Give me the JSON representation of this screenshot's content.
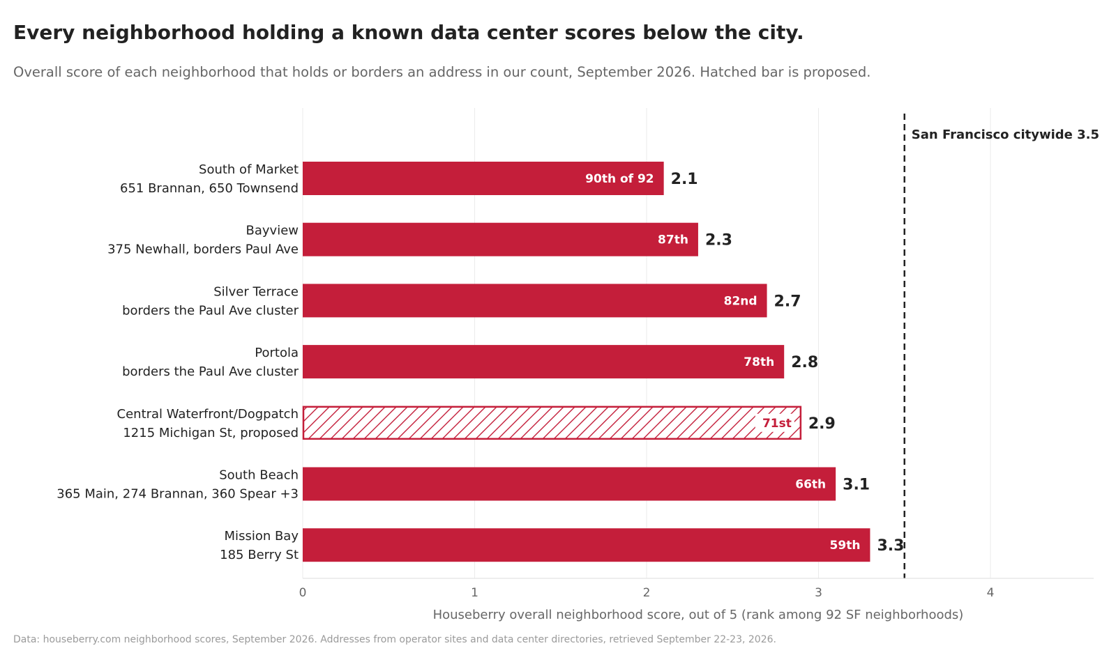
{
  "chart_data": {
    "type": "bar",
    "orientation": "horizontal",
    "title": "Every neighborhood holding a known data center scores below the city.",
    "subtitle": "Overall score of each neighborhood that holds or borders an address in our count, September 2026. Hatched bar is proposed.",
    "xlabel": "Houseberry overall neighborhood score, out of 5 (rank among 92 SF neighborhoods)",
    "source": "Data: houseberry.com neighborhood scores, September 2026. Addresses from operator sites and data center directories, retrieved September 22-23, 2026.",
    "xlim": [
      0,
      4.6
    ],
    "xticks": [
      0,
      1,
      2,
      3,
      4
    ],
    "grid": "vertical",
    "bar_color": "#c41e3a",
    "reference_line": {
      "value": 3.5,
      "label": "San Francisco citywide 3.5",
      "style": "dashed"
    },
    "bars": [
      {
        "name": "South of Market",
        "detail": "651 Brannan, 650 Townsend",
        "value": 2.1,
        "value_label": "2.1",
        "rank_label": "90th of 92",
        "proposed": false
      },
      {
        "name": "Bayview",
        "detail": "375 Newhall, borders Paul Ave",
        "value": 2.3,
        "value_label": "2.3",
        "rank_label": "87th",
        "proposed": false
      },
      {
        "name": "Silver Terrace",
        "detail": "borders the Paul Ave cluster",
        "value": 2.7,
        "value_label": "2.7",
        "rank_label": "82nd",
        "proposed": false
      },
      {
        "name": "Portola",
        "detail": "borders the Paul Ave cluster",
        "value": 2.8,
        "value_label": "2.8",
        "rank_label": "78th",
        "proposed": false
      },
      {
        "name": "Central Waterfront/Dogpatch",
        "detail": "1215 Michigan St, proposed",
        "value": 2.9,
        "value_label": "2.9",
        "rank_label": "71st",
        "proposed": true
      },
      {
        "name": "South Beach",
        "detail": "365 Main, 274 Brannan, 360 Spear +3",
        "value": 3.1,
        "value_label": "3.1",
        "rank_label": "66th",
        "proposed": false
      },
      {
        "name": "Mission Bay",
        "detail": "185 Berry St",
        "value": 3.3,
        "value_label": "3.3",
        "rank_label": "59th",
        "proposed": false
      }
    ]
  }
}
